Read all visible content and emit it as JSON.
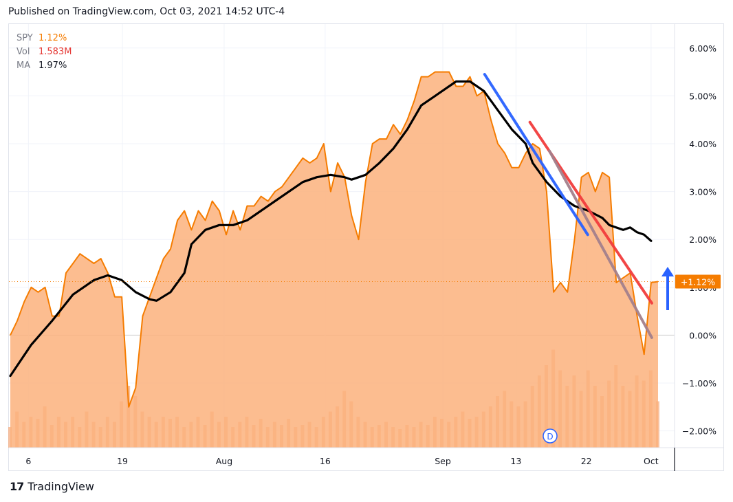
{
  "header": {
    "published": "Published on TradingView.com, Oct 03, 2021 14:52 UTC-4"
  },
  "legend": [
    {
      "name": "SPY",
      "value": "1.12%",
      "color": "#f57c00"
    },
    {
      "name": "Vol",
      "value": "1.583M",
      "color": "#e53935"
    },
    {
      "name": "MA",
      "value": "1.97%",
      "color": "#131722"
    }
  ],
  "price_badge": "+1.12%",
  "event_marker": "D",
  "footer": {
    "brand": "TradingView",
    "logo": "17"
  },
  "colors": {
    "spy_line": "#f57c00",
    "spy_fill": "#fbb27d",
    "ma_line": "#000000",
    "trend_blue": "#2962ff",
    "trend_red": "#f23d3d",
    "badge": "#f57c00",
    "arrow": "#2962ff"
  },
  "chart_data": {
    "type": "area",
    "title": "",
    "symbol": "SPY",
    "xlabel": "",
    "ylabel": "",
    "ylim": [
      -2.35,
      6.5
    ],
    "yticks": [
      -2,
      -1,
      0,
      1,
      2,
      3,
      4,
      5,
      6
    ],
    "ytick_labels": [
      "−2.00%",
      "−1.00%",
      "0.00%",
      "1.00%",
      "2.00%",
      "3.00%",
      "4.00%",
      "5.00%",
      "6.00%"
    ],
    "xlim": [
      0,
      93
    ],
    "xticks": [
      {
        "x": 2.6,
        "label": "6"
      },
      {
        "x": 16.1,
        "label": "19"
      },
      {
        "x": 30.7,
        "label": "Aug"
      },
      {
        "x": 45.2,
        "label": "16"
      },
      {
        "x": 62.1,
        "label": "Sep"
      },
      {
        "x": 72.6,
        "label": "13"
      },
      {
        "x": 82.7,
        "label": "22"
      },
      {
        "x": 92.0,
        "label": "Oct"
      }
    ],
    "spy_points": [
      [
        0,
        0.0
      ],
      [
        1,
        0.3
      ],
      [
        2,
        0.7
      ],
      [
        3,
        1.0
      ],
      [
        4,
        0.9
      ],
      [
        5,
        1.0
      ],
      [
        6,
        0.4
      ],
      [
        7,
        0.4
      ],
      [
        8,
        1.3
      ],
      [
        9,
        1.5
      ],
      [
        10,
        1.7
      ],
      [
        11,
        1.6
      ],
      [
        12,
        1.5
      ],
      [
        13,
        1.6
      ],
      [
        14,
        1.3
      ],
      [
        15,
        0.8
      ],
      [
        16,
        0.8
      ],
      [
        17,
        -1.5
      ],
      [
        18,
        -1.1
      ],
      [
        19,
        0.4
      ],
      [
        20,
        0.8
      ],
      [
        21,
        1.2
      ],
      [
        22,
        1.6
      ],
      [
        23,
        1.8
      ],
      [
        24,
        2.4
      ],
      [
        25,
        2.6
      ],
      [
        26,
        2.2
      ],
      [
        27,
        2.6
      ],
      [
        28,
        2.4
      ],
      [
        29,
        2.8
      ],
      [
        30,
        2.6
      ],
      [
        31,
        2.1
      ],
      [
        32,
        2.6
      ],
      [
        33,
        2.2
      ],
      [
        34,
        2.7
      ],
      [
        35,
        2.7
      ],
      [
        36,
        2.9
      ],
      [
        37,
        2.8
      ],
      [
        38,
        3.0
      ],
      [
        39,
        3.1
      ],
      [
        40,
        3.3
      ],
      [
        41,
        3.5
      ],
      [
        42,
        3.7
      ],
      [
        43,
        3.6
      ],
      [
        44,
        3.7
      ],
      [
        45,
        4.0
      ],
      [
        46,
        3.0
      ],
      [
        47,
        3.6
      ],
      [
        48,
        3.3
      ],
      [
        49,
        2.5
      ],
      [
        50,
        2.0
      ],
      [
        51,
        3.2
      ],
      [
        52,
        4.0
      ],
      [
        53,
        4.1
      ],
      [
        54,
        4.1
      ],
      [
        55,
        4.4
      ],
      [
        56,
        4.2
      ],
      [
        57,
        4.5
      ],
      [
        58,
        4.9
      ],
      [
        59,
        5.4
      ],
      [
        60,
        5.4
      ],
      [
        61,
        5.5
      ],
      [
        62,
        5.5
      ],
      [
        63,
        5.5
      ],
      [
        64,
        5.2
      ],
      [
        65,
        5.2
      ],
      [
        66,
        5.4
      ],
      [
        67,
        5.0
      ],
      [
        68,
        5.1
      ],
      [
        69,
        4.5
      ],
      [
        70,
        4.0
      ],
      [
        71,
        3.8
      ],
      [
        72,
        3.5
      ],
      [
        73,
        3.5
      ],
      [
        74,
        3.8
      ],
      [
        75,
        4.0
      ],
      [
        76,
        3.9
      ],
      [
        77,
        3.0
      ],
      [
        78,
        0.9
      ],
      [
        79,
        1.1
      ],
      [
        80,
        0.9
      ],
      [
        81,
        2.0
      ],
      [
        82,
        3.3
      ],
      [
        83,
        3.4
      ],
      [
        84,
        3.0
      ],
      [
        85,
        3.4
      ],
      [
        86,
        3.3
      ],
      [
        87,
        1.1
      ],
      [
        88,
        1.2
      ],
      [
        89,
        1.3
      ],
      [
        90,
        0.4
      ],
      [
        91,
        -0.4
      ],
      [
        92,
        1.1
      ],
      [
        93,
        1.12
      ]
    ],
    "ma_points": [
      [
        0,
        -0.85
      ],
      [
        3,
        -0.2
      ],
      [
        6,
        0.3
      ],
      [
        9,
        0.85
      ],
      [
        12,
        1.15
      ],
      [
        14,
        1.25
      ],
      [
        16,
        1.15
      ],
      [
        18,
        0.9
      ],
      [
        20,
        0.75
      ],
      [
        21,
        0.72
      ],
      [
        23,
        0.9
      ],
      [
        25,
        1.3
      ],
      [
        26,
        1.9
      ],
      [
        28,
        2.2
      ],
      [
        30,
        2.3
      ],
      [
        32,
        2.3
      ],
      [
        34,
        2.4
      ],
      [
        36,
        2.6
      ],
      [
        38,
        2.8
      ],
      [
        40,
        3.0
      ],
      [
        42,
        3.2
      ],
      [
        44,
        3.3
      ],
      [
        46,
        3.35
      ],
      [
        48,
        3.3
      ],
      [
        49,
        3.25
      ],
      [
        51,
        3.35
      ],
      [
        53,
        3.6
      ],
      [
        55,
        3.9
      ],
      [
        57,
        4.3
      ],
      [
        59,
        4.8
      ],
      [
        61,
        5.0
      ],
      [
        63,
        5.2
      ],
      [
        64,
        5.3
      ],
      [
        66,
        5.3
      ],
      [
        68,
        5.1
      ],
      [
        70,
        4.7
      ],
      [
        72,
        4.3
      ],
      [
        74,
        4.0
      ],
      [
        75,
        3.6
      ],
      [
        77,
        3.2
      ],
      [
        79,
        2.9
      ],
      [
        81,
        2.7
      ],
      [
        83,
        2.6
      ],
      [
        85,
        2.45
      ],
      [
        86,
        2.3
      ],
      [
        88,
        2.2
      ],
      [
        89,
        2.25
      ],
      [
        90,
        2.15
      ],
      [
        91,
        2.1
      ],
      [
        92,
        1.97
      ]
    ],
    "volume": [
      0.2,
      0.35,
      0.25,
      0.3,
      0.28,
      0.4,
      0.22,
      0.3,
      0.25,
      0.3,
      0.2,
      0.35,
      0.25,
      0.2,
      0.3,
      0.25,
      0.45,
      0.6,
      0.5,
      0.35,
      0.3,
      0.25,
      0.3,
      0.28,
      0.3,
      0.2,
      0.25,
      0.3,
      0.22,
      0.35,
      0.25,
      0.3,
      0.2,
      0.25,
      0.3,
      0.22,
      0.28,
      0.2,
      0.25,
      0.22,
      0.28,
      0.2,
      0.22,
      0.25,
      0.2,
      0.3,
      0.35,
      0.4,
      0.55,
      0.45,
      0.3,
      0.25,
      0.2,
      0.22,
      0.25,
      0.2,
      0.18,
      0.22,
      0.2,
      0.25,
      0.22,
      0.3,
      0.28,
      0.25,
      0.3,
      0.35,
      0.28,
      0.3,
      0.35,
      0.4,
      0.5,
      0.55,
      0.45,
      0.4,
      0.45,
      0.6,
      0.7,
      0.8,
      0.95,
      0.75,
      0.6,
      0.7,
      0.55,
      0.75,
      0.6,
      0.5,
      0.65,
      0.8,
      0.6,
      0.55,
      0.7,
      0.65,
      0.75,
      0.45
    ],
    "trendlines": [
      {
        "color": "blue",
        "from": [
          68.1,
          5.45
        ],
        "to": [
          82.9,
          2.1
        ]
      },
      {
        "color": "red",
        "from": [
          74.6,
          4.45
        ],
        "to": [
          92.1,
          0.67
        ]
      },
      {
        "color": "mauve",
        "from": [
          77.4,
          3.85
        ],
        "to": [
          92.1,
          -0.05
        ]
      }
    ],
    "current_value": 1.12
  }
}
